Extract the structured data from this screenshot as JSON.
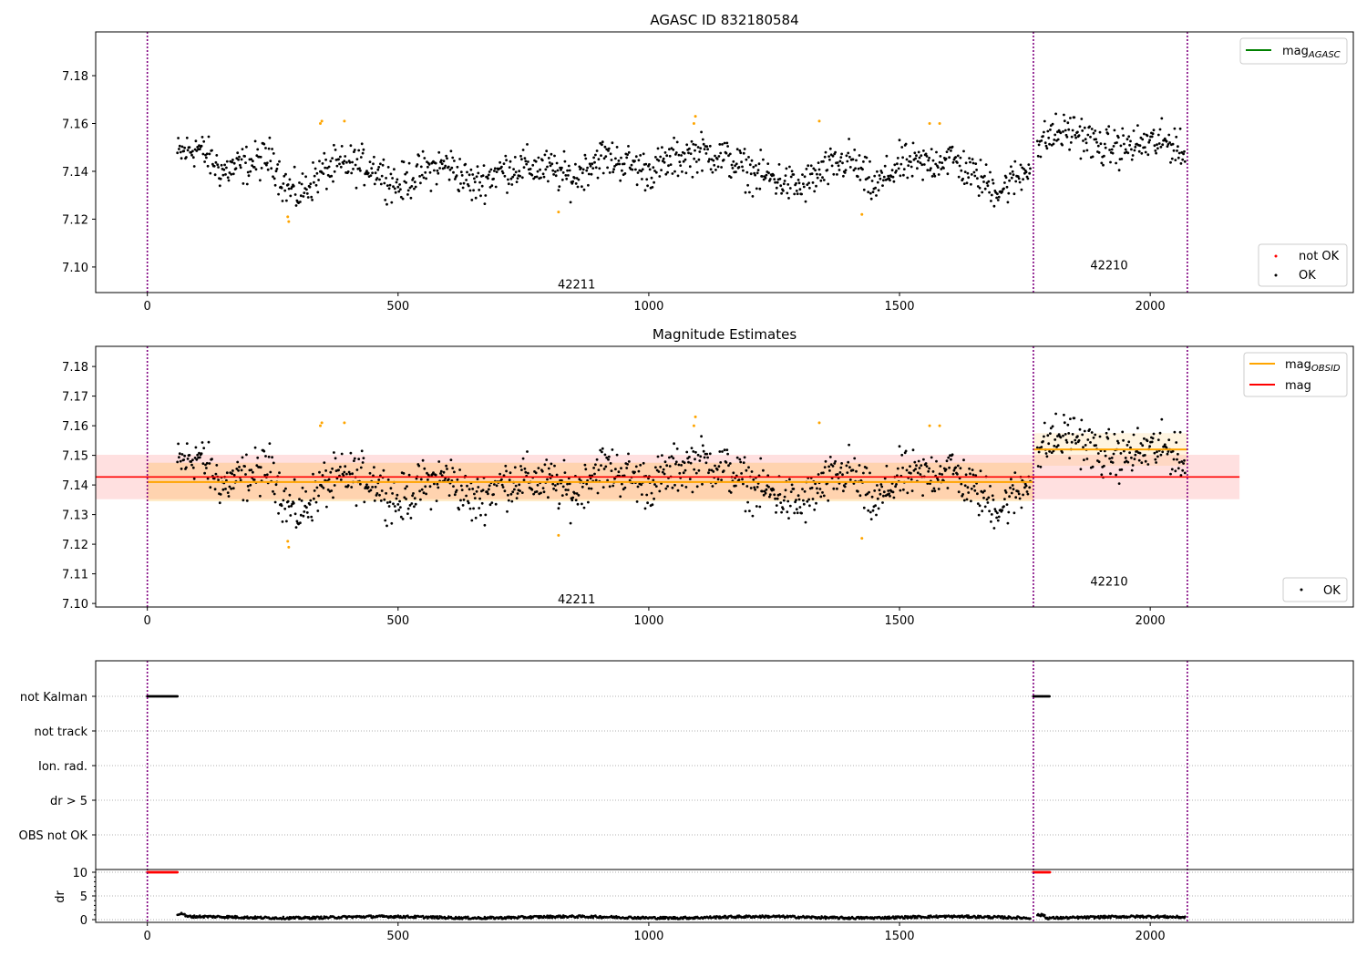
{
  "chart_data": [
    {
      "type": "scatter",
      "title": "AGASC ID 832180584",
      "xlim": [
        -103,
        2405
      ],
      "ylim": [
        7.0893,
        7.1983
      ],
      "xticks": [
        "0",
        "500",
        "1000",
        "1500",
        "2000"
      ],
      "xtick_values": [
        0,
        500,
        1000,
        1500,
        2000
      ],
      "yticks": [
        "7.10",
        "7.12",
        "7.14",
        "7.16",
        "7.18"
      ],
      "ytick_values": [
        7.1,
        7.12,
        7.14,
        7.16,
        7.18
      ],
      "legend_top": [
        {
          "label": "mag",
          "sub": "AGASC",
          "color": "#008000"
        }
      ],
      "legend_bottom": [
        {
          "label": "not OK",
          "color": "#ff0000"
        },
        {
          "label": "OK",
          "color": "#000000"
        }
      ],
      "annotations": [
        {
          "text": "42211",
          "x": 856,
          "y": 7.093
        },
        {
          "text": "42210",
          "x": 1918,
          "y": 7.101
        }
      ]
    },
    {
      "type": "scatter",
      "title": "Magnitude Estimates",
      "xlim": [
        -103,
        2405
      ],
      "ylim": [
        7.0988,
        7.1868
      ],
      "xticks": [
        "0",
        "500",
        "1000",
        "1500",
        "2000"
      ],
      "xtick_values": [
        0,
        500,
        1000,
        1500,
        2000
      ],
      "yticks": [
        "7.10",
        "7.11",
        "7.12",
        "7.13",
        "7.14",
        "7.15",
        "7.16",
        "7.17",
        "7.18"
      ],
      "ytick_values": [
        7.1,
        7.11,
        7.12,
        7.13,
        7.14,
        7.15,
        7.16,
        7.17,
        7.18
      ],
      "legend_top": [
        {
          "label": "mag",
          "sub": "OBSID",
          "color": "#ffa500"
        },
        {
          "label": "mag",
          "sub": "",
          "color": "#ff0000"
        }
      ],
      "legend_bottom": [
        {
          "label": "OK",
          "color": "#000000"
        }
      ],
      "annotations": [
        {
          "text": "42211",
          "x": 856,
          "y": 7.1015
        },
        {
          "text": "42210",
          "x": 1918,
          "y": 7.1075
        }
      ],
      "mag": {
        "value": 7.1427,
        "err": 0.0075,
        "x_range": [
          -103,
          2178
        ]
      },
      "mag_obsid": [
        {
          "obsid": "42211",
          "value": 7.141,
          "err": 0.0065,
          "x_range": [
            0,
            1767
          ]
        },
        {
          "obsid": "42210",
          "value": 7.152,
          "err": 0.0055,
          "x_range": [
            1767,
            2074
          ]
        }
      ]
    },
    {
      "type": "scatter",
      "title": "",
      "flag_labels": [
        "not Kalman",
        "not track",
        "Ion. rad.",
        "dr > 5",
        "OBS not OK"
      ],
      "flag_ranges": {
        "not Kalman": [
          [
            0,
            60
          ],
          [
            1767,
            1800
          ]
        ]
      },
      "dr_ylabel": "dr",
      "dr_yticks": [
        "0",
        "5",
        "10"
      ],
      "dr_ytick_values": [
        0,
        5,
        10
      ],
      "dr_high_ranges": [
        [
          0,
          60
        ],
        [
          1767,
          1800
        ]
      ],
      "dr_typical": 0.5,
      "xticks": [
        "0",
        "500",
        "1000",
        "1500",
        "2000"
      ],
      "xtick_values": [
        0,
        500,
        1000,
        1500,
        2000
      ]
    }
  ],
  "observation_boundaries": [
    0,
    1767,
    2074
  ],
  "segments": [
    {
      "obsid": "42211",
      "x": [
        60,
        100,
        150,
        200,
        250,
        270,
        300,
        350,
        400,
        450,
        500,
        550,
        600,
        650,
        700,
        750,
        800,
        850,
        900,
        950,
        1000,
        1050,
        1100,
        1150,
        1200,
        1250,
        1300,
        1350,
        1400,
        1450,
        1500,
        1550,
        1600,
        1650,
        1700,
        1750,
        1762
      ],
      "mag": [
        7.147,
        7.15,
        7.14,
        7.143,
        7.146,
        7.135,
        7.13,
        7.14,
        7.143,
        7.142,
        7.134,
        7.14,
        7.143,
        7.134,
        7.14,
        7.142,
        7.141,
        7.137,
        7.146,
        7.144,
        7.14,
        7.145,
        7.148,
        7.146,
        7.14,
        7.137,
        7.133,
        7.14,
        7.145,
        7.133,
        7.143,
        7.143,
        7.146,
        7.138,
        7.132,
        7.14,
        7.146
      ]
    },
    {
      "obsid": "42210",
      "x": [
        1775,
        1800,
        1850,
        1900,
        1950,
        2000,
        2050,
        2070
      ],
      "mag": [
        7.15,
        7.155,
        7.157,
        7.15,
        7.15,
        7.152,
        7.152,
        7.144
      ]
    }
  ],
  "not_ok_points": [
    [
      280,
      7.121
    ],
    [
      282,
      7.119
    ],
    [
      345,
      7.16
    ],
    [
      348,
      7.161
    ],
    [
      393,
      7.161
    ],
    [
      820,
      7.123
    ],
    [
      1090,
      7.16
    ],
    [
      1093,
      7.163
    ],
    [
      1340,
      7.161
    ],
    [
      1425,
      7.122
    ],
    [
      1560,
      7.16
    ],
    [
      1580,
      7.16
    ]
  ],
  "colors": {
    "ok": "#000000",
    "not_ok": "#ffa500",
    "boundary": "#800080",
    "mag": "#ff0000",
    "mag_obsid": "#ffa500",
    "agasc": "#008000"
  }
}
